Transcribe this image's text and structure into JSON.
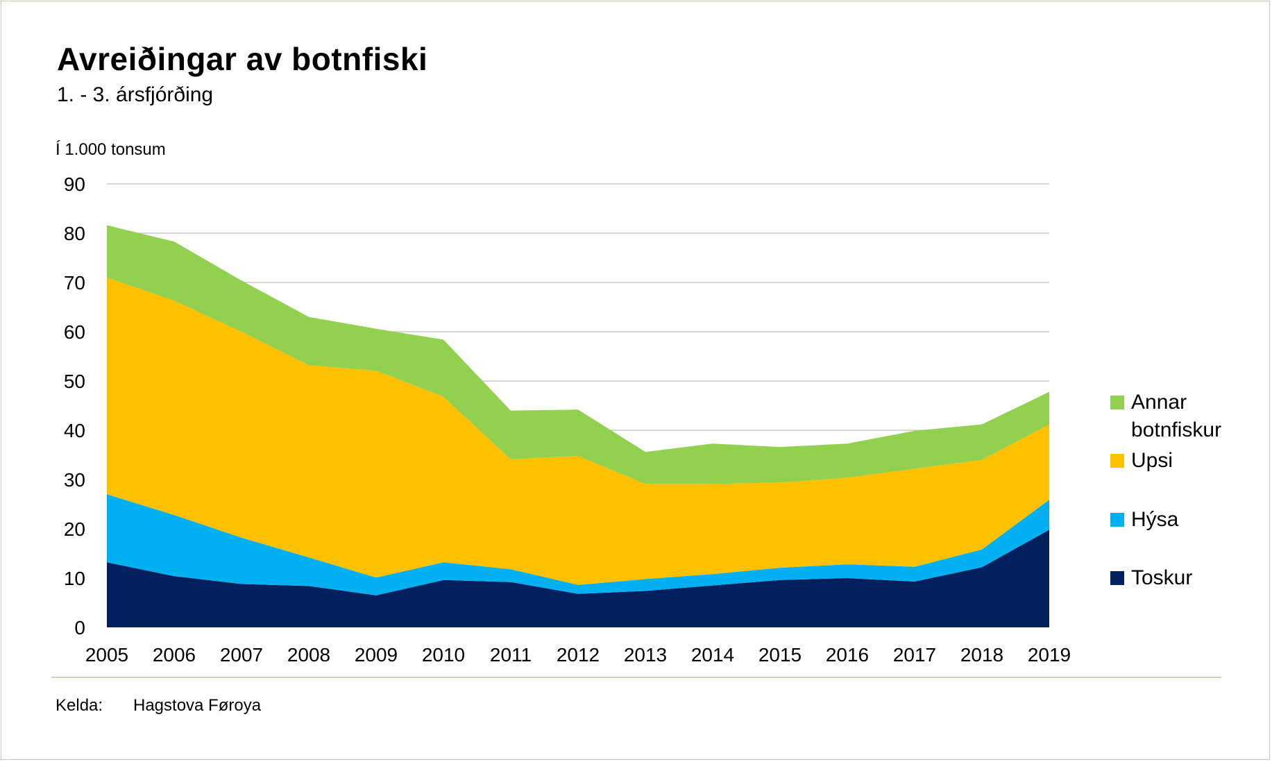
{
  "header": {
    "title": "Avreiðingar av botnfiski",
    "subtitle": "1. - 3. ársfjórðing",
    "unit_label": "Í 1.000 tonsum"
  },
  "footer": {
    "source_label": "Kelda:",
    "source_value": "Hagstova Føroya"
  },
  "colors": {
    "Toskur": "#002060",
    "Hýsa": "#00b0f0",
    "Upsi": "#ffc000",
    "Annar botnfiskur": "#92d050",
    "grid": "#c8c8c8"
  },
  "chart_data": {
    "type": "area",
    "stacked": true,
    "title": "Avreiðingar av botnfiski",
    "subtitle": "1. - 3. ársfjórðing",
    "ylabel": "Í 1.000 tonsum",
    "ylim": [
      0,
      90
    ],
    "yticks": [
      0,
      10,
      20,
      30,
      40,
      50,
      60,
      70,
      80,
      90
    ],
    "grid": true,
    "legend_position": "right",
    "x": [
      "2005",
      "2006",
      "2007",
      "2008",
      "2009",
      "2010",
      "2011",
      "2012",
      "2013",
      "2014",
      "2015",
      "2016",
      "2017",
      "2018",
      "2019"
    ],
    "series": [
      {
        "name": "Toskur",
        "color": "#002060",
        "values": [
          13.2,
          10.4,
          8.8,
          8.4,
          6.5,
          9.6,
          9.2,
          6.8,
          7.4,
          8.5,
          9.6,
          10.0,
          9.3,
          12.2,
          19.8
        ]
      },
      {
        "name": "Hýsa",
        "color": "#00b0f0",
        "values": [
          13.8,
          12.4,
          9.4,
          5.8,
          3.6,
          3.6,
          2.6,
          1.8,
          2.4,
          2.3,
          2.5,
          2.8,
          3.0,
          3.6,
          6.1
        ]
      },
      {
        "name": "Upsi",
        "color": "#ffc000",
        "values": [
          44.0,
          43.5,
          41.8,
          39.0,
          42.0,
          33.6,
          22.3,
          26.2,
          19.3,
          18.3,
          17.3,
          17.6,
          19.9,
          18.2,
          15.3
        ]
      },
      {
        "name": "Annar botnfiskur",
        "color": "#92d050",
        "values": [
          10.6,
          12.0,
          10.4,
          9.8,
          8.5,
          11.6,
          9.9,
          9.4,
          6.5,
          8.2,
          7.2,
          6.9,
          7.7,
          7.2,
          6.6
        ]
      }
    ],
    "legend_order": [
      "Annar botnfiskur",
      "Upsi",
      "Hýsa",
      "Toskur"
    ]
  }
}
